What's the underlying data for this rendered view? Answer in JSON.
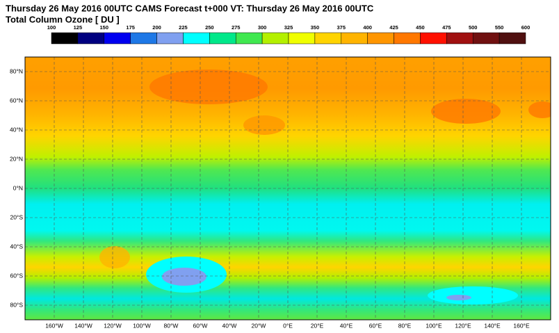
{
  "header": {
    "title": "Thursday 26 May 2016 00UTC CAMS Forecast t+000 VT: Thursday 26 May 2016 00UTC",
    "subtitle": "Total Column Ozone [ DU ]"
  },
  "colorbar": {
    "levels": [
      100,
      125,
      150,
      175,
      200,
      225,
      250,
      275,
      300,
      325,
      350,
      375,
      400,
      425,
      450,
      475,
      500,
      550,
      600
    ],
    "colors": [
      "#000000",
      "#000080",
      "#0000f0",
      "#1e78e6",
      "#80a0f0",
      "#00ffff",
      "#00e88a",
      "#40e850",
      "#b4f000",
      "#f0ff00",
      "#ffd400",
      "#ffb400",
      "#ff9600",
      "#ff7800",
      "#ff1000",
      "#a01010",
      "#701010",
      "#501010"
    ]
  },
  "map": {
    "lat_labels": [
      "80°N",
      "60°N",
      "40°N",
      "20°N",
      "0°N",
      "20°S",
      "40°S",
      "60°S",
      "80°S"
    ],
    "lon_labels": [
      "160°W",
      "140°W",
      "120°W",
      "100°W",
      "80°W",
      "60°W",
      "40°W",
      "20°W",
      "0°E",
      "20°E",
      "40°E",
      "60°E",
      "80°E",
      "100°E",
      "120°E",
      "140°E",
      "160°E"
    ]
  }
}
